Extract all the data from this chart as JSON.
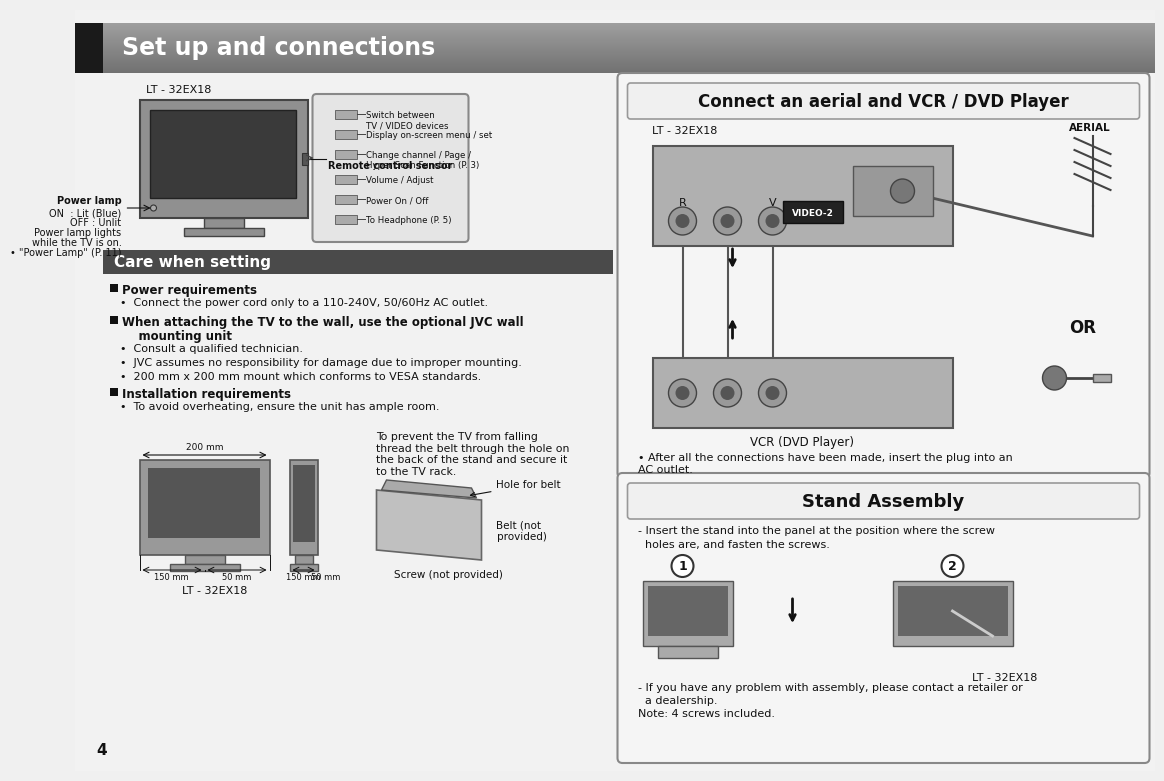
{
  "title": "Set up and connections",
  "page_bg": "#f0f0f0",
  "black_tab_color": "#1a1a1a",
  "section_header_bg": "#555555",
  "section_header_text": "#ffffff",
  "text_color": "#111111",
  "model_label": "LT - 32EX18",
  "care_header": "Care when setting",
  "connect_header": "Connect an aerial and VCR / DVD Player",
  "stand_header": "Stand Assembly",
  "power_req_header": "Power requirements",
  "power_req_text": "Connect the power cord only to a 110-240V, 50/60Hz AC outlet.",
  "wall_mount_line1": "When attaching the TV to the wall, use the optional JVC wall",
  "wall_mount_line2": "    mounting unit",
  "bullet1": "Consult a qualified technician.",
  "bullet2": "JVC assumes no responsibility for damage due to improper mounting.",
  "bullet3": "200 mm x 200 mm mount which conforms to VESA standards.",
  "install_req_header": "Installation requirements",
  "install_req_text": "To avoid overheating, ensure the unit has ample room.",
  "prevent_fall_text": "To prevent the TV from falling\nthread the belt through the hole on\nthe back of the stand and secure it\nto the TV rack.",
  "hole_belt_label": "Hole for belt",
  "belt_label": "Belt (not\nprovided)",
  "screw_label": "Screw (not provided)",
  "power_lamp_label": "Power lamp",
  "power_lamp_on": "ON  : Lit (Blue)",
  "power_lamp_off": "OFF : Unlit",
  "power_lamp_note1": "Power lamp lights",
  "power_lamp_note2": "while the TV is on.",
  "power_lamp_note3": "• \"Power Lamp\" (P. 11)",
  "remote_label": "Remote control sensor",
  "switch_label": "Switch between\nTV / VIDEO devices",
  "menu_label": "Display on-screen menu / set",
  "channel_label": "Change channel / Page /\nHyper Scan Function (P. 3)",
  "volume_label": "Volume / Adjust",
  "power_label": "Power On / Off",
  "headphone_label": "To Headphone (P. 5)",
  "vcr_label": "VCR (DVD Player)",
  "aerial_label": "AERIAL",
  "or_label": "OR",
  "video2_label": "VIDEO-2",
  "after_conn_text": "After all the connections have been made, insert the plug into an\nAC outlet.",
  "stand_text1": "Insert the stand into the panel at the position where the screw",
  "stand_text2": "holes are, and fasten the screws.",
  "step1": "1",
  "step2": "2",
  "lt_label2": "LT - 32EX18",
  "dealer_line1": "- If you have any problem with assembly, please contact a retailer or",
  "dealer_line2": "  a dealership.",
  "dealer_line3": "Note: 4 screws included.",
  "page_number": "4",
  "dim_200mm": "200 mm",
  "dim_150mm_1": "150 mm 50 mm",
  "dim_150mm_2": "150 mm",
  "dim_50mm_2": "50 mm",
  "lt_label_bottom": "LT - 32EX18"
}
